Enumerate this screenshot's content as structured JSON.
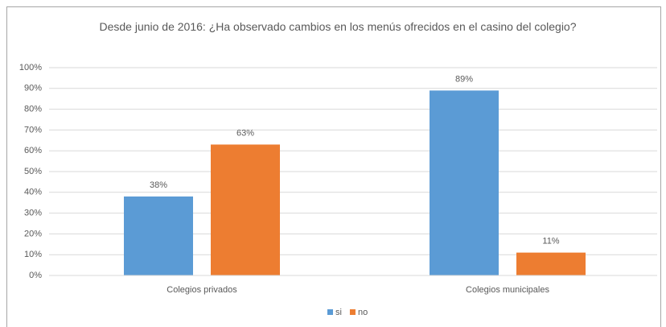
{
  "chart_data": {
    "type": "bar",
    "title": "Desde junio de 2016: ¿Ha observado cambios en los menús ofrecidos en el casino del colegio?",
    "categories": [
      "Colegios privados",
      "Colegios municipales"
    ],
    "series": [
      {
        "name": "si",
        "color": "#5b9bd5",
        "values": [
          38,
          89
        ],
        "value_labels": [
          "38%",
          "89%"
        ]
      },
      {
        "name": "no",
        "color": "#ed7d31",
        "values": [
          63,
          11
        ],
        "value_labels": [
          "63%",
          "11%"
        ]
      }
    ],
    "ylim": [
      0,
      100
    ],
    "yticks": [
      {
        "value": 0,
        "label": "0%"
      },
      {
        "value": 10,
        "label": "10%"
      },
      {
        "value": 20,
        "label": "20%"
      },
      {
        "value": 30,
        "label": "30%"
      },
      {
        "value": 40,
        "label": "40%"
      },
      {
        "value": 50,
        "label": "50%"
      },
      {
        "value": 60,
        "label": "60%"
      },
      {
        "value": 70,
        "label": "70%"
      },
      {
        "value": 80,
        "label": "80%"
      },
      {
        "value": 90,
        "label": "90%"
      },
      {
        "value": 100,
        "label": "100%"
      }
    ],
    "grid": true,
    "legend": "bottom"
  }
}
